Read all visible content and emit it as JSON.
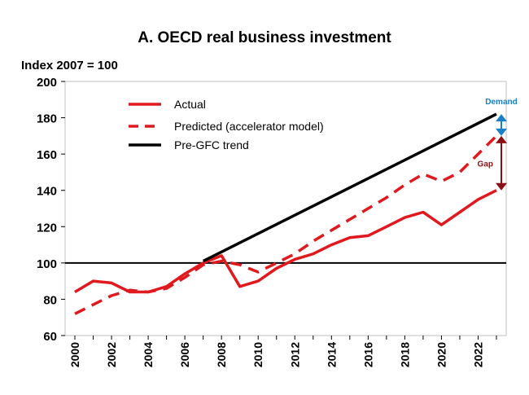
{
  "chart_data": {
    "type": "line",
    "title": "A. OECD real business investment",
    "ylabel": "Index 2007 = 100",
    "xlabel": "",
    "ylim": [
      60,
      200
    ],
    "yticks": [
      60,
      80,
      100,
      120,
      140,
      160,
      180,
      200
    ],
    "xlim": [
      2000,
      2023
    ],
    "xticks": [
      2000,
      2002,
      2004,
      2006,
      2008,
      2010,
      2012,
      2014,
      2016,
      2018,
      2020,
      2022
    ],
    "grid": false,
    "reference_line": 100,
    "legend_position": "top-left",
    "series": [
      {
        "name": "Actual",
        "style": "solid",
        "color": "#e0191f",
        "x": [
          2000,
          2001,
          2002,
          2003,
          2004,
          2005,
          2006,
          2007,
          2008,
          2009,
          2010,
          2011,
          2012,
          2013,
          2014,
          2015,
          2016,
          2017,
          2018,
          2019,
          2020,
          2021,
          2022,
          2023
        ],
        "y": [
          84,
          90,
          89,
          84,
          84,
          87,
          94,
          100,
          104,
          87,
          90,
          97,
          102,
          105,
          110,
          114,
          115,
          120,
          125,
          128,
          121,
          128,
          135,
          140
        ]
      },
      {
        "name": "Predicted (accelerator model)",
        "style": "dashed",
        "color": "#e0191f",
        "x": [
          2000,
          2001,
          2002,
          2003,
          2004,
          2005,
          2006,
          2007,
          2008,
          2009,
          2010,
          2011,
          2012,
          2013,
          2014,
          2015,
          2016,
          2017,
          2018,
          2019,
          2020,
          2021,
          2022,
          2023
        ],
        "y": [
          72,
          77,
          82,
          85,
          84,
          86,
          92,
          99,
          101,
          99,
          95,
          100,
          105,
          112,
          118,
          124,
          130,
          136,
          143,
          149,
          145,
          150,
          160,
          170
        ]
      },
      {
        "name": "Pre-GFC trend",
        "style": "solid",
        "color": "#000000",
        "x": [
          2007,
          2023
        ],
        "y": [
          101,
          182
        ]
      }
    ],
    "annotations": [
      {
        "label": "Demand",
        "color": "#1a7fc4",
        "from": 182,
        "to": 170,
        "x": 2023
      },
      {
        "label": "Gap",
        "color": "#8b0f14",
        "from": 170,
        "to": 140,
        "x": 2023
      }
    ]
  }
}
